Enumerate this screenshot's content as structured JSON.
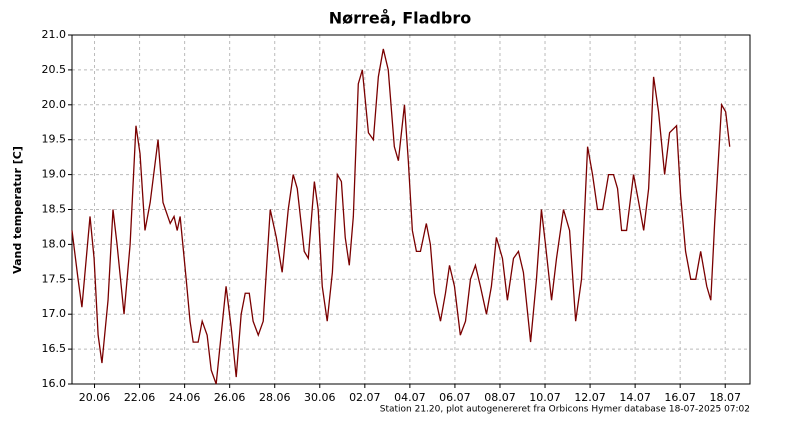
{
  "chart_data": {
    "type": "line",
    "title": "Nørreå, Fladbro",
    "y_label": "Vand temperatur [C]",
    "footer": "Station 21.20, plot autogenereret fra Orbicons Hymer database 18-07-2025 07:02",
    "xlim": [
      170,
      200.1
    ],
    "xticks": [
      {
        "value": 171,
        "label": "20.06"
      },
      {
        "value": 173,
        "label": "22.06"
      },
      {
        "value": 175,
        "label": "24.06"
      },
      {
        "value": 177,
        "label": "26.06"
      },
      {
        "value": 179,
        "label": "28.06"
      },
      {
        "value": 181,
        "label": "30.06"
      },
      {
        "value": 183,
        "label": "02.07"
      },
      {
        "value": 185,
        "label": "04.07"
      },
      {
        "value": 187,
        "label": "06.07"
      },
      {
        "value": 189,
        "label": "08.07"
      },
      {
        "value": 191,
        "label": "10.07"
      },
      {
        "value": 193,
        "label": "12.07"
      },
      {
        "value": 195,
        "label": "14.07"
      },
      {
        "value": 197,
        "label": "16.07"
      },
      {
        "value": 199,
        "label": "18.07"
      }
    ],
    "ylim": [
      16,
      21
    ],
    "yticks": [
      {
        "value": 16,
        "label": "16.0"
      },
      16.5,
      {
        "value": 17,
        "label": "17.0"
      },
      17.5,
      {
        "value": 18,
        "label": "18.0"
      },
      18.5,
      {
        "value": 19,
        "label": "19.0"
      },
      19.5,
      {
        "value": 20,
        "label": "20.0"
      },
      20.5,
      {
        "value": 21,
        "label": "21.0"
      }
    ],
    "grid": true,
    "x": [
      170,
      170.27,
      170.44,
      170.8,
      170.98,
      171.16,
      171.33,
      171.6,
      171.82,
      172,
      172.31,
      172.58,
      172.84,
      173.02,
      173.24,
      173.47,
      173.82,
      174.04,
      174.36,
      174.53,
      174.67,
      174.8,
      175.07,
      175.24,
      175.38,
      175.6,
      175.78,
      176,
      176.18,
      176.4,
      176.62,
      176.84,
      177.07,
      177.29,
      177.51,
      177.69,
      177.87,
      178.04,
      178.27,
      178.49,
      178.8,
      179.07,
      179.33,
      179.6,
      179.82,
      180,
      180.31,
      180.49,
      180.76,
      180.93,
      181.11,
      181.33,
      181.56,
      181.78,
      181.96,
      182.13,
      182.31,
      182.49,
      182.71,
      182.89,
      183.16,
      183.38,
      183.6,
      183.82,
      184.04,
      184.31,
      184.49,
      184.76,
      184.93,
      185.11,
      185.29,
      185.47,
      185.73,
      185.91,
      186.09,
      186.36,
      186.58,
      186.76,
      186.98,
      187.24,
      187.47,
      187.69,
      187.91,
      188.13,
      188.4,
      188.62,
      188.84,
      189.11,
      189.33,
      189.6,
      189.82,
      190.04,
      190.36,
      190.62,
      190.84,
      191.02,
      191.29,
      191.51,
      191.82,
      192.09,
      192.36,
      192.62,
      192.89,
      193.11,
      193.33,
      193.56,
      193.82,
      194.04,
      194.22,
      194.4,
      194.62,
      194.93,
      195.16,
      195.38,
      195.6,
      195.82,
      196.04,
      196.31,
      196.53,
      196.84,
      197.02,
      197.24,
      197.47,
      197.69,
      197.91,
      198.18,
      198.36,
      198.53,
      198.84,
      199.02,
      199.2
    ],
    "series": [
      {
        "name": "Vand temperatur",
        "color": "#7a0000",
        "values": [
          18.2,
          17.5,
          17.1,
          18.4,
          17.8,
          16.7,
          16.3,
          17.2,
          18.5,
          18.0,
          17.0,
          18.0,
          19.7,
          19.3,
          18.2,
          18.6,
          19.5,
          18.6,
          18.3,
          18.4,
          18.2,
          18.4,
          17.5,
          16.9,
          16.6,
          16.6,
          16.9,
          16.7,
          16.2,
          16.0,
          16.7,
          17.4,
          16.8,
          16.1,
          17.0,
          17.3,
          17.3,
          16.9,
          16.7,
          16.9,
          18.5,
          18.1,
          17.6,
          18.5,
          19.0,
          18.8,
          17.9,
          17.8,
          18.9,
          18.5,
          17.4,
          16.9,
          17.6,
          19.0,
          18.9,
          18.1,
          17.7,
          18.4,
          20.3,
          20.5,
          19.6,
          19.5,
          20.4,
          20.8,
          20.5,
          19.4,
          19.2,
          20.0,
          19.2,
          18.2,
          17.9,
          17.9,
          18.3,
          18.0,
          17.3,
          16.9,
          17.3,
          17.7,
          17.4,
          16.7,
          16.9,
          17.5,
          17.7,
          17.4,
          17.0,
          17.4,
          18.1,
          17.8,
          17.2,
          17.8,
          17.9,
          17.6,
          16.6,
          17.5,
          18.5,
          18.0,
          17.2,
          17.8,
          18.5,
          18.2,
          16.9,
          17.5,
          19.4,
          19.0,
          18.5,
          18.5,
          19.0,
          19.0,
          18.8,
          18.2,
          18.2,
          19.0,
          18.6,
          18.2,
          18.8,
          20.4,
          19.9,
          19.0,
          19.6,
          19.7,
          18.7,
          17.9,
          17.5,
          17.5,
          17.9,
          17.4,
          17.2,
          18.3,
          20.0,
          19.9,
          19.4
        ]
      }
    ]
  }
}
